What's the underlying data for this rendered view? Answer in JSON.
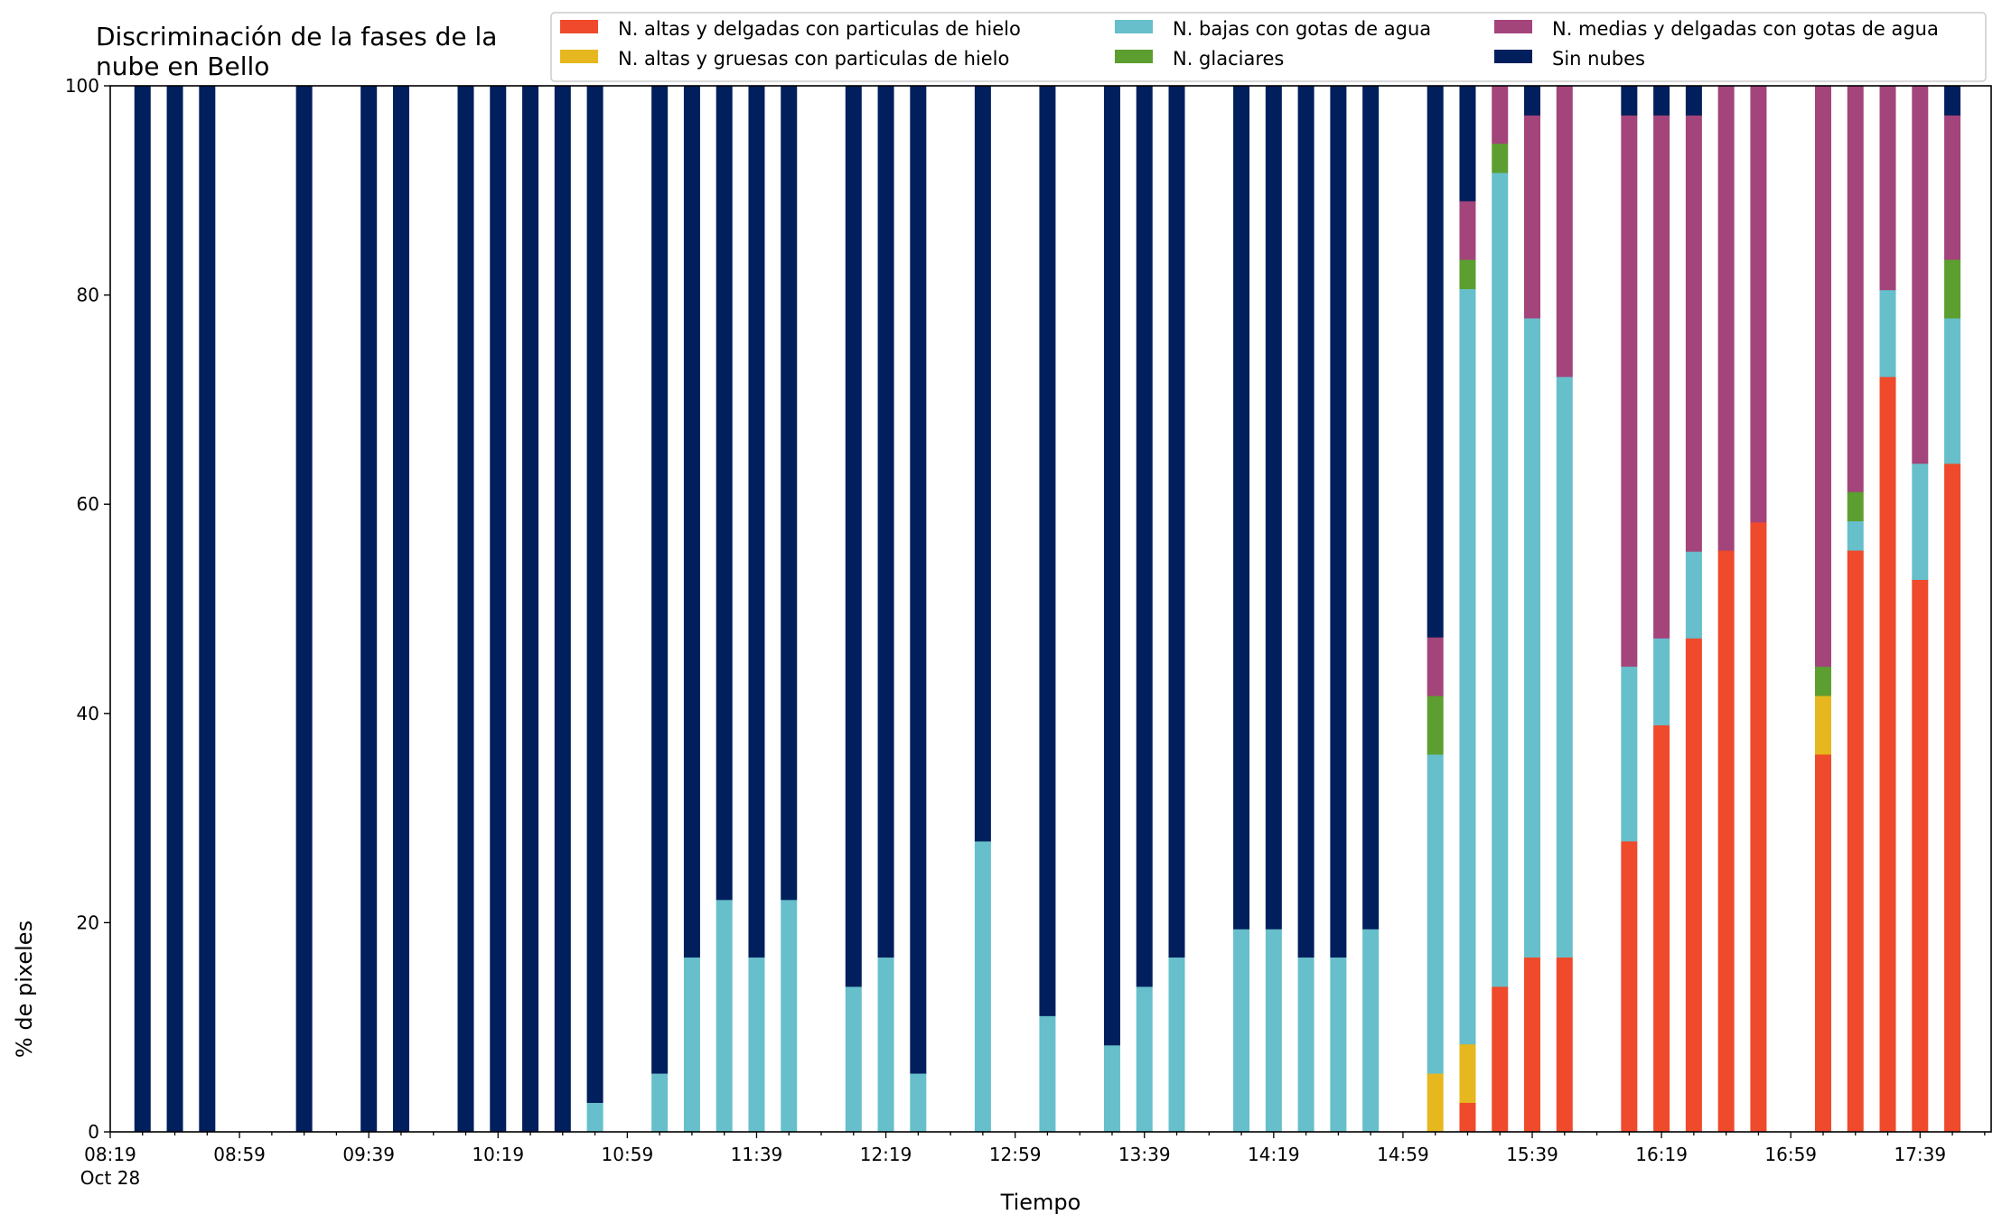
{
  "chart_data": {
    "type": "bar",
    "stacked": true,
    "title": "Discriminación de la fases de la nube en Bello",
    "title_lines": [
      "Discriminación de la fases de la",
      "nube en Bello"
    ],
    "xlabel": "Tiempo",
    "ylabel": "% de pixeles",
    "ylim": [
      0,
      100
    ],
    "yticks": [
      0,
      20,
      40,
      60,
      80,
      100
    ],
    "xlim_minutes": [
      0,
      582
    ],
    "x_date_label": "Oct 28",
    "xticks_major": [
      {
        "t": 0,
        "label": "08:19"
      },
      {
        "t": 40,
        "label": "08:59"
      },
      {
        "t": 80,
        "label": "09:39"
      },
      {
        "t": 120,
        "label": "10:19"
      },
      {
        "t": 160,
        "label": "10:59"
      },
      {
        "t": 200,
        "label": "11:39"
      },
      {
        "t": 240,
        "label": "12:19"
      },
      {
        "t": 280,
        "label": "12:59"
      },
      {
        "t": 320,
        "label": "13:39"
      },
      {
        "t": 360,
        "label": "14:19"
      },
      {
        "t": 400,
        "label": "14:59"
      },
      {
        "t": 440,
        "label": "15:39"
      },
      {
        "t": 480,
        "label": "16:19"
      },
      {
        "t": 520,
        "label": "16:59"
      },
      {
        "t": 560,
        "label": "17:39"
      }
    ],
    "legend_placement": "top-right",
    "legend_columns": 3,
    "series_order": [
      "altas_delgadas",
      "altas_gruesas",
      "bajas",
      "glaciares",
      "medias",
      "sin_nubes"
    ],
    "series": [
      {
        "key": "altas_delgadas",
        "name": "N. altas y delgadas con particulas de hielo",
        "color": "#ee4a2b"
      },
      {
        "key": "altas_gruesas",
        "name": "N. altas y gruesas con particulas de hielo",
        "color": "#e6b71e"
      },
      {
        "key": "bajas",
        "name": "N. bajas con gotas de agua",
        "color": "#66bfcb"
      },
      {
        "key": "glaciares",
        "name": "N. glaciares",
        "color": "#5c9e2f"
      },
      {
        "key": "medias",
        "name": "N. medias y delgadas con gotas de agua",
        "color": "#a3447a"
      },
      {
        "key": "sin_nubes",
        "name": "Sin nubes",
        "color": "#001f5c"
      }
    ],
    "bars": [
      {
        "time": "08:29",
        "t": 10,
        "altas_delgadas": 0,
        "altas_gruesas": 0,
        "bajas": 0,
        "glaciares": 0,
        "medias": 0,
        "sin_nubes": 100
      },
      {
        "time": "08:39",
        "t": 20,
        "altas_delgadas": 0,
        "altas_gruesas": 0,
        "bajas": 0,
        "glaciares": 0,
        "medias": 0,
        "sin_nubes": 100
      },
      {
        "time": "08:49",
        "t": 30,
        "altas_delgadas": 0,
        "altas_gruesas": 0,
        "bajas": 0,
        "glaciares": 0,
        "medias": 0,
        "sin_nubes": 100
      },
      {
        "time": "09:19",
        "t": 60,
        "altas_delgadas": 0,
        "altas_gruesas": 0,
        "bajas": 0,
        "glaciares": 0,
        "medias": 0,
        "sin_nubes": 100
      },
      {
        "time": "09:39",
        "t": 80,
        "altas_delgadas": 0,
        "altas_gruesas": 0,
        "bajas": 0,
        "glaciares": 0,
        "medias": 0,
        "sin_nubes": 100
      },
      {
        "time": "09:49",
        "t": 90,
        "altas_delgadas": 0,
        "altas_gruesas": 0,
        "bajas": 0,
        "glaciares": 0,
        "medias": 0,
        "sin_nubes": 100
      },
      {
        "time": "10:09",
        "t": 110,
        "altas_delgadas": 0,
        "altas_gruesas": 0,
        "bajas": 0,
        "glaciares": 0,
        "medias": 0,
        "sin_nubes": 100
      },
      {
        "time": "10:19",
        "t": 120,
        "altas_delgadas": 0,
        "altas_gruesas": 0,
        "bajas": 0,
        "glaciares": 0,
        "medias": 0,
        "sin_nubes": 100
      },
      {
        "time": "10:29",
        "t": 130,
        "altas_delgadas": 0,
        "altas_gruesas": 0,
        "bajas": 0,
        "glaciares": 0,
        "medias": 0,
        "sin_nubes": 100
      },
      {
        "time": "10:39",
        "t": 140,
        "altas_delgadas": 0,
        "altas_gruesas": 0,
        "bajas": 0,
        "glaciares": 0,
        "medias": 0,
        "sin_nubes": 100
      },
      {
        "time": "10:49",
        "t": 150,
        "altas_delgadas": 0,
        "altas_gruesas": 0,
        "bajas": 2.8,
        "glaciares": 0,
        "medias": 0,
        "sin_nubes": 97.2
      },
      {
        "time": "11:09",
        "t": 170,
        "altas_delgadas": 0,
        "altas_gruesas": 0,
        "bajas": 5.6,
        "glaciares": 0,
        "medias": 0,
        "sin_nubes": 94.4
      },
      {
        "time": "11:19",
        "t": 180,
        "altas_delgadas": 0,
        "altas_gruesas": 0,
        "bajas": 16.7,
        "glaciares": 0,
        "medias": 0,
        "sin_nubes": 83.3
      },
      {
        "time": "11:29",
        "t": 190,
        "altas_delgadas": 0,
        "altas_gruesas": 0,
        "bajas": 22.2,
        "glaciares": 0,
        "medias": 0,
        "sin_nubes": 77.8
      },
      {
        "time": "11:39",
        "t": 200,
        "altas_delgadas": 0,
        "altas_gruesas": 0,
        "bajas": 16.7,
        "glaciares": 0,
        "medias": 0,
        "sin_nubes": 83.3
      },
      {
        "time": "11:49",
        "t": 210,
        "altas_delgadas": 0,
        "altas_gruesas": 0,
        "bajas": 22.2,
        "glaciares": 0,
        "medias": 0,
        "sin_nubes": 77.8
      },
      {
        "time": "12:09",
        "t": 230,
        "altas_delgadas": 0,
        "altas_gruesas": 0,
        "bajas": 13.9,
        "glaciares": 0,
        "medias": 0,
        "sin_nubes": 86.1
      },
      {
        "time": "12:19",
        "t": 240,
        "altas_delgadas": 0,
        "altas_gruesas": 0,
        "bajas": 16.7,
        "glaciares": 0,
        "medias": 0,
        "sin_nubes": 83.3
      },
      {
        "time": "12:29",
        "t": 250,
        "altas_delgadas": 0,
        "altas_gruesas": 0,
        "bajas": 5.6,
        "glaciares": 0,
        "medias": 0,
        "sin_nubes": 94.4
      },
      {
        "time": "12:49",
        "t": 270,
        "altas_delgadas": 0,
        "altas_gruesas": 0,
        "bajas": 27.8,
        "glaciares": 0,
        "medias": 0,
        "sin_nubes": 72.2
      },
      {
        "time": "13:09",
        "t": 290,
        "altas_delgadas": 0,
        "altas_gruesas": 0,
        "bajas": 11.1,
        "glaciares": 0,
        "medias": 0,
        "sin_nubes": 88.9
      },
      {
        "time": "13:29",
        "t": 310,
        "altas_delgadas": 0,
        "altas_gruesas": 0,
        "bajas": 8.3,
        "glaciares": 0,
        "medias": 0,
        "sin_nubes": 91.7
      },
      {
        "time": "13:39",
        "t": 320,
        "altas_delgadas": 0,
        "altas_gruesas": 0,
        "bajas": 13.9,
        "glaciares": 0,
        "medias": 0,
        "sin_nubes": 86.1
      },
      {
        "time": "13:49",
        "t": 330,
        "altas_delgadas": 0,
        "altas_gruesas": 0,
        "bajas": 16.7,
        "glaciares": 0,
        "medias": 0,
        "sin_nubes": 83.3
      },
      {
        "time": "14:09",
        "t": 350,
        "altas_delgadas": 0,
        "altas_gruesas": 0,
        "bajas": 19.4,
        "glaciares": 0,
        "medias": 0,
        "sin_nubes": 80.6
      },
      {
        "time": "14:19",
        "t": 360,
        "altas_delgadas": 0,
        "altas_gruesas": 0,
        "bajas": 19.4,
        "glaciares": 0,
        "medias": 0,
        "sin_nubes": 80.6
      },
      {
        "time": "14:29",
        "t": 370,
        "altas_delgadas": 0,
        "altas_gruesas": 0,
        "bajas": 16.7,
        "glaciares": 0,
        "medias": 0,
        "sin_nubes": 83.3
      },
      {
        "time": "14:39",
        "t": 380,
        "altas_delgadas": 0,
        "altas_gruesas": 0,
        "bajas": 16.7,
        "glaciares": 0,
        "medias": 0,
        "sin_nubes": 83.3
      },
      {
        "time": "14:49",
        "t": 390,
        "altas_delgadas": 0,
        "altas_gruesas": 0,
        "bajas": 19.4,
        "glaciares": 0,
        "medias": 0,
        "sin_nubes": 80.6
      },
      {
        "time": "15:09",
        "t": 410,
        "altas_delgadas": 0,
        "altas_gruesas": 5.6,
        "bajas": 30.5,
        "glaciares": 5.6,
        "medias": 5.6,
        "sin_nubes": 52.7
      },
      {
        "time": "15:19",
        "t": 420,
        "altas_delgadas": 2.8,
        "altas_gruesas": 5.6,
        "bajas": 72.2,
        "glaciares": 2.8,
        "medias": 5.6,
        "sin_nubes": 11.0
      },
      {
        "time": "15:29",
        "t": 430,
        "altas_delgadas": 13.9,
        "altas_gruesas": 0,
        "bajas": 77.8,
        "glaciares": 2.8,
        "medias": 5.5,
        "sin_nubes": 0
      },
      {
        "time": "15:39",
        "t": 440,
        "altas_delgadas": 16.7,
        "altas_gruesas": 0,
        "bajas": 61.1,
        "glaciares": 0,
        "medias": 19.4,
        "sin_nubes": 2.8
      },
      {
        "time": "15:49",
        "t": 450,
        "altas_delgadas": 16.7,
        "altas_gruesas": 0,
        "bajas": 55.5,
        "glaciares": 0,
        "medias": 27.8,
        "sin_nubes": 0
      },
      {
        "time": "16:09",
        "t": 470,
        "altas_delgadas": 27.8,
        "altas_gruesas": 0,
        "bajas": 16.7,
        "glaciares": 0,
        "medias": 52.7,
        "sin_nubes": 2.8
      },
      {
        "time": "16:19",
        "t": 480,
        "altas_delgadas": 38.9,
        "altas_gruesas": 0,
        "bajas": 8.3,
        "glaciares": 0,
        "medias": 50.0,
        "sin_nubes": 2.8
      },
      {
        "time": "16:29",
        "t": 490,
        "altas_delgadas": 47.2,
        "altas_gruesas": 0,
        "bajas": 8.3,
        "glaciares": 0,
        "medias": 41.7,
        "sin_nubes": 2.8
      },
      {
        "time": "16:39",
        "t": 500,
        "altas_delgadas": 55.6,
        "altas_gruesas": 0,
        "bajas": 0,
        "glaciares": 0,
        "medias": 44.4,
        "sin_nubes": 0
      },
      {
        "time": "16:49",
        "t": 510,
        "altas_delgadas": 58.3,
        "altas_gruesas": 0,
        "bajas": 0,
        "glaciares": 0,
        "medias": 41.7,
        "sin_nubes": 0
      },
      {
        "time": "17:09",
        "t": 530,
        "altas_delgadas": 36.1,
        "altas_gruesas": 5.6,
        "bajas": 0,
        "glaciares": 2.8,
        "medias": 55.5,
        "sin_nubes": 0
      },
      {
        "time": "17:19",
        "t": 540,
        "altas_delgadas": 55.6,
        "altas_gruesas": 0,
        "bajas": 2.8,
        "glaciares": 2.8,
        "medias": 38.8,
        "sin_nubes": 0
      },
      {
        "time": "17:29",
        "t": 550,
        "altas_delgadas": 72.2,
        "altas_gruesas": 0,
        "bajas": 8.3,
        "glaciares": 0,
        "medias": 19.5,
        "sin_nubes": 0
      },
      {
        "time": "17:39",
        "t": 560,
        "altas_delgadas": 52.8,
        "altas_gruesas": 0,
        "bajas": 11.1,
        "glaciares": 0,
        "medias": 36.1,
        "sin_nubes": 0
      },
      {
        "time": "17:49",
        "t": 570,
        "altas_delgadas": 63.9,
        "altas_gruesas": 0,
        "bajas": 13.9,
        "glaciares": 5.6,
        "medias": 13.8,
        "sin_nubes": 2.8
      }
    ]
  }
}
